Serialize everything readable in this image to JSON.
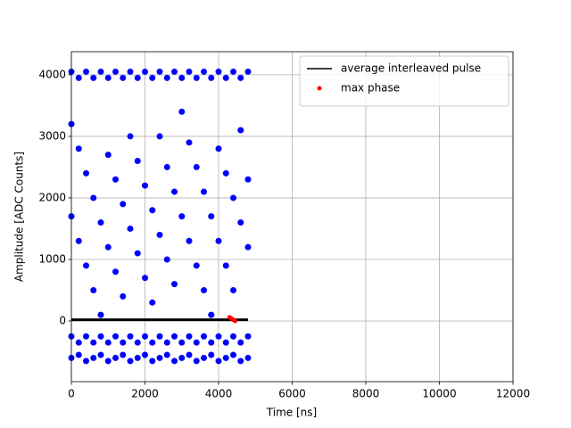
{
  "chart_data": {
    "type": "scatter",
    "x_label": "Time [ns]",
    "y_label": "Amplitude [ADC Counts]",
    "xlim": [
      0,
      12000
    ],
    "ylim": [
      -985,
      4375
    ],
    "xticks": [
      0,
      2000,
      4000,
      6000,
      8000,
      10000,
      12000
    ],
    "yticks": [
      0,
      1000,
      2000,
      3000,
      4000
    ],
    "grid": true,
    "legend": "upper right",
    "series": [
      {
        "style": "markers",
        "color": "#0000ff",
        "x": [
          0,
          0,
          0,
          0,
          0,
          200,
          200,
          200,
          200,
          200,
          400,
          400,
          400,
          400,
          400,
          600,
          600,
          600,
          600,
          600,
          800,
          800,
          800,
          800,
          800,
          1000,
          1000,
          1000,
          1000,
          1000,
          1200,
          1200,
          1200,
          1200,
          1200,
          1400,
          1400,
          1400,
          1400,
          1400,
          1600,
          1600,
          1600,
          1600,
          1600,
          1800,
          1800,
          1800,
          1800,
          1800,
          2000,
          2000,
          2000,
          2000,
          2000,
          2200,
          2200,
          2200,
          2200,
          2200,
          2400,
          2400,
          2400,
          2400,
          2400,
          2600,
          2600,
          2600,
          2600,
          2600,
          2800,
          2800,
          2800,
          2800,
          2800,
          3000,
          3000,
          3000,
          3000,
          3000,
          3200,
          3200,
          3200,
          3200,
          3200,
          3400,
          3400,
          3400,
          3400,
          3400,
          3600,
          3600,
          3600,
          3600,
          3600,
          3800,
          3800,
          3800,
          3800,
          3800,
          4000,
          4000,
          4000,
          4000,
          4000,
          4200,
          4200,
          4200,
          4200,
          4200,
          4400,
          4400,
          4400,
          4400,
          4400,
          4600,
          4600,
          4600,
          4600,
          4600,
          4800,
          4800,
          4800,
          4800,
          4800
        ],
        "values": [
          4050,
          3200,
          1700,
          -250,
          -600,
          3950,
          2800,
          1300,
          -350,
          -550,
          4050,
          2400,
          900,
          -250,
          -650,
          3950,
          2000,
          500,
          -350,
          -600,
          4050,
          1600,
          100,
          -250,
          -550,
          3950,
          1200,
          2700,
          -350,
          -650,
          4050,
          800,
          2300,
          -250,
          -600,
          3950,
          400,
          1900,
          -350,
          -550,
          4050,
          3000,
          1500,
          -250,
          -650,
          3950,
          2600,
          1100,
          -350,
          -600,
          4050,
          2200,
          700,
          -250,
          -550,
          3950,
          1800,
          300,
          -350,
          -650,
          4050,
          1400,
          3000,
          -250,
          -600,
          3950,
          1000,
          2500,
          -350,
          -550,
          4050,
          600,
          2100,
          -250,
          -650,
          3950,
          3400,
          1700,
          -350,
          -600,
          4050,
          2900,
          1300,
          -250,
          -550,
          3950,
          2500,
          900,
          -350,
          -650,
          4050,
          2100,
          500,
          -250,
          -600,
          3950,
          1700,
          100,
          -350,
          -550,
          4050,
          1300,
          2800,
          -250,
          -650,
          3950,
          900,
          2400,
          -350,
          -600,
          4050,
          500,
          2000,
          -250,
          -550,
          3950,
          3100,
          1600,
          -350,
          -650,
          4050,
          2300,
          1200,
          -250,
          -600
        ]
      },
      {
        "name": "average interleaved pulse",
        "style": "line",
        "color": "#000000",
        "x": [
          0,
          400,
          800,
          1200,
          1600,
          2000,
          2400,
          2800,
          3200,
          3600,
          4000,
          4400,
          4800
        ],
        "values": [
          20,
          20,
          20,
          20,
          20,
          20,
          20,
          20,
          20,
          20,
          20,
          20,
          20
        ]
      },
      {
        "name": "max phase",
        "style": "markers",
        "color": "#ff0000",
        "x": [
          4300,
          4350,
          4400,
          4450
        ],
        "values": [
          60,
          40,
          20,
          0
        ]
      }
    ]
  }
}
